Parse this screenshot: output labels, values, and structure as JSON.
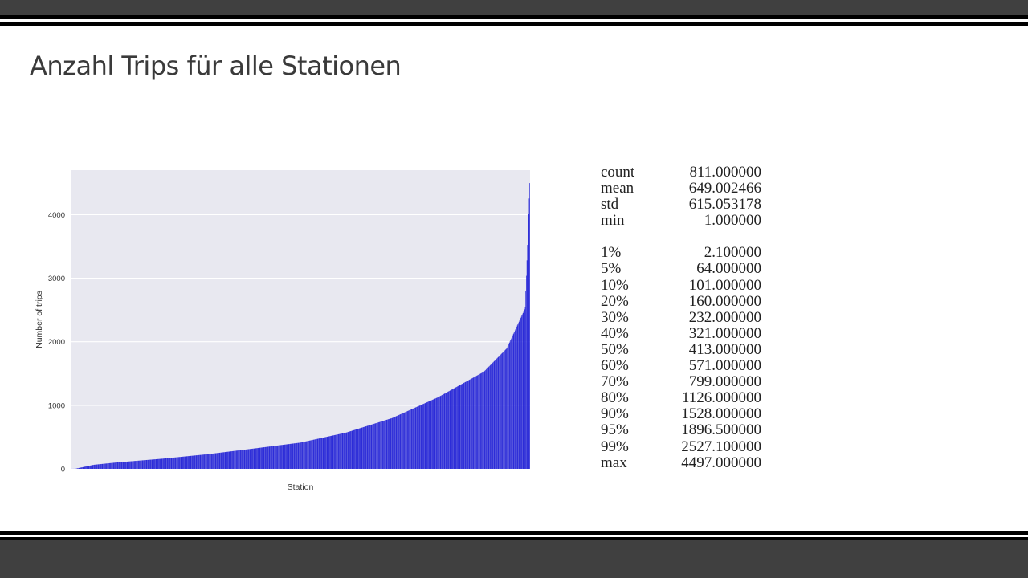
{
  "slide": {
    "title": "Anzahl Trips für alle Stationen",
    "colors": {
      "band": "#404040",
      "rule": "#000000",
      "bar": "#1f1fd6",
      "plot_bg": "#e8e8f0"
    }
  },
  "chart_data": {
    "type": "bar",
    "xlabel": "Station",
    "ylabel": "Number of trips",
    "ylim": [
      0,
      4700
    ],
    "yticks": [
      0,
      1000,
      2000,
      3000,
      4000
    ],
    "grid": true,
    "n_stations": 811,
    "sorted_ascending": true,
    "quantiles": [
      [
        0.0,
        1
      ],
      [
        0.01,
        2.1
      ],
      [
        0.05,
        64
      ],
      [
        0.1,
        101
      ],
      [
        0.2,
        160
      ],
      [
        0.3,
        232
      ],
      [
        0.4,
        321
      ],
      [
        0.5,
        413
      ],
      [
        0.6,
        571
      ],
      [
        0.7,
        799
      ],
      [
        0.8,
        1126
      ],
      [
        0.9,
        1528
      ],
      [
        0.95,
        1896.5
      ],
      [
        0.99,
        2527.1
      ],
      [
        1.0,
        4497
      ]
    ]
  },
  "stats": {
    "summary": [
      {
        "key": "count",
        "value": "811.000000"
      },
      {
        "key": "mean",
        "value": "649.002466"
      },
      {
        "key": "std",
        "value": "615.053178"
      },
      {
        "key": "min",
        "value": "1.000000"
      }
    ],
    "percentiles": [
      {
        "key": "1%",
        "value": "2.100000"
      },
      {
        "key": "5%",
        "value": "64.000000"
      },
      {
        "key": "10%",
        "value": "101.000000"
      },
      {
        "key": "20%",
        "value": "160.000000"
      },
      {
        "key": "30%",
        "value": "232.000000"
      },
      {
        "key": "40%",
        "value": "321.000000"
      },
      {
        "key": "50%",
        "value": "413.000000"
      },
      {
        "key": "60%",
        "value": "571.000000"
      },
      {
        "key": "70%",
        "value": "799.000000"
      },
      {
        "key": "80%",
        "value": "1126.000000"
      },
      {
        "key": "90%",
        "value": "1528.000000"
      },
      {
        "key": "95%",
        "value": "1896.500000"
      },
      {
        "key": "99%",
        "value": "2527.100000"
      },
      {
        "key": "max",
        "value": "4497.000000"
      }
    ]
  }
}
